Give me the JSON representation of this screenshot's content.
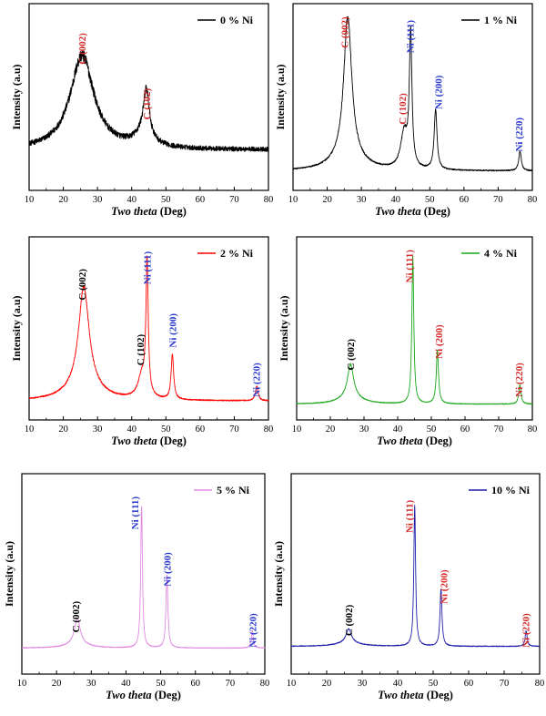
{
  "figure": {
    "xlabel_italic": "Two theta",
    "xlabel_unit": " (Deg)",
    "ylabel": "Intensity (a.u)"
  },
  "chart_data": [
    {
      "type": "line",
      "legend": "0 % Ni",
      "color": "#000000",
      "xlim": [
        10,
        80
      ],
      "xticks": [
        10,
        20,
        30,
        40,
        50,
        60,
        70,
        80
      ],
      "ylim": [
        0,
        100
      ],
      "noise": 0.09,
      "baseline": 18,
      "peaks": [
        {
          "center": 25.5,
          "height": 58,
          "width": 4.2
        },
        {
          "center": 44.3,
          "height": 28,
          "width": 1.0
        },
        {
          "center": 43.5,
          "height": 8,
          "width": 3.0
        }
      ],
      "annotations": [
        {
          "text": "C (002)",
          "x": 25.5,
          "color": "#d42a2a",
          "y": 90
        },
        {
          "text": "C (102)",
          "x": 44.3,
          "color": "#d42a2a",
          "y": 56
        }
      ]
    },
    {
      "type": "line",
      "legend": "1 % Ni",
      "color": "#000000",
      "xlim": [
        10,
        80
      ],
      "xticks": [
        10,
        20,
        30,
        40,
        50,
        60,
        70,
        80
      ],
      "ylim": [
        0,
        100
      ],
      "noise": 0.035,
      "baseline": 5,
      "peaks": [
        {
          "center": 26.0,
          "height": 87,
          "width": 1.4
        },
        {
          "center": 26.0,
          "height": 8,
          "width": 5.0
        },
        {
          "center": 42.5,
          "height": 22,
          "width": 1.2
        },
        {
          "center": 44.4,
          "height": 82,
          "width": 0.45
        },
        {
          "center": 51.7,
          "height": 37,
          "width": 0.5
        },
        {
          "center": 76.4,
          "height": 12,
          "width": 0.45
        }
      ],
      "annotations": [
        {
          "text": "C (002)",
          "x": 25.0,
          "color": "#d42a2a",
          "y": 100
        },
        {
          "text": "C (102)",
          "x": 42.0,
          "color": "#d42a2a",
          "y": 53
        },
        {
          "text": "Ni (111)",
          "x": 44.2,
          "color": "#2b3bcc",
          "y": 98
        },
        {
          "text": "Ni (200)",
          "x": 52.5,
          "color": "#2b3bcc",
          "y": 64
        },
        {
          "text": "Ni (220)",
          "x": 76.0,
          "color": "#2b3bcc",
          "y": 38
        }
      ]
    },
    {
      "type": "line",
      "legend": "2 % Ni",
      "color": "#ff0000",
      "xlim": [
        10,
        80
      ],
      "xticks": [
        10,
        20,
        30,
        40,
        50,
        60,
        70,
        80
      ],
      "ylim": [
        0,
        100
      ],
      "noise": 0.035,
      "baseline": 5,
      "peaks": [
        {
          "center": 26.0,
          "height": 62,
          "width": 1.8
        },
        {
          "center": 26.0,
          "height": 10,
          "width": 5.0
        },
        {
          "center": 43.0,
          "height": 14,
          "width": 1.4
        },
        {
          "center": 44.5,
          "height": 83,
          "width": 0.4
        },
        {
          "center": 51.9,
          "height": 28,
          "width": 0.45
        },
        {
          "center": 76.6,
          "height": 9,
          "width": 0.45
        }
      ],
      "annotations": [
        {
          "text": "C (002)",
          "x": 25.5,
          "color": "#000000",
          "y": 88
        },
        {
          "text": "C (102)",
          "x": 42.5,
          "color": "#000000",
          "y": 47
        },
        {
          "text": "Ni (111)",
          "x": 44.5,
          "color": "#2b3bcc",
          "y": 99
        },
        {
          "text": "Ni (200)",
          "x": 51.9,
          "color": "#2b3bcc",
          "y": 60
        },
        {
          "text": "Ni (220)",
          "x": 76.4,
          "color": "#2b3bcc",
          "y": 29
        }
      ]
    },
    {
      "type": "line",
      "legend": "4 % Ni",
      "color": "#1aa51a",
      "xlim": [
        10,
        80
      ],
      "xticks": [
        10,
        20,
        30,
        40,
        50,
        60,
        70,
        80
      ],
      "ylim": [
        0,
        100
      ],
      "noise": 0.025,
      "baseline": 3,
      "peaks": [
        {
          "center": 26.0,
          "height": 21,
          "width": 1.1
        },
        {
          "center": 26.0,
          "height": 4,
          "width": 4.0
        },
        {
          "center": 44.5,
          "height": 92,
          "width": 0.35
        },
        {
          "center": 51.8,
          "height": 33,
          "width": 0.4
        },
        {
          "center": 76.3,
          "height": 12,
          "width": 0.4
        }
      ],
      "annotations": [
        {
          "text": "C (002)",
          "x": 26.0,
          "color": "#000000",
          "y": 44
        },
        {
          "text": "Ni (111)",
          "x": 43.4,
          "color": "#d42a2a",
          "y": 100
        },
        {
          "text": "Ni (200)",
          "x": 52.2,
          "color": "#d42a2a",
          "y": 53
        },
        {
          "text": "Ni (220)",
          "x": 76.0,
          "color": "#d42a2a",
          "y": 29
        }
      ]
    },
    {
      "type": "line",
      "legend": "5 % Ni",
      "color": "#e08ae0",
      "xlim": [
        10,
        80
      ],
      "xticks": [
        10,
        20,
        30,
        40,
        50,
        60,
        70,
        80
      ],
      "ylim": [
        0,
        100
      ],
      "noise": 0.02,
      "baseline": 8,
      "peaks": [
        {
          "center": 26.0,
          "height": 15,
          "width": 1.0
        },
        {
          "center": 26.0,
          "height": 2,
          "width": 4.0
        },
        {
          "center": 44.5,
          "height": 82,
          "width": 0.3
        },
        {
          "center": 51.8,
          "height": 42,
          "width": 0.33
        },
        {
          "center": 76.4,
          "height": 10,
          "width": 0.33
        }
      ],
      "annotations": [
        {
          "text": "C (002)",
          "x": 25.5,
          "color": "#000000",
          "y": 35
        },
        {
          "text": "Ni (111)",
          "x": 42.5,
          "color": "#2b3bcc",
          "y": 95
        },
        {
          "text": "Ni (200)",
          "x": 51.8,
          "color": "#2b3bcc",
          "y": 63
        },
        {
          "text": "Ni (220)",
          "x": 76.4,
          "color": "#2b3bcc",
          "y": 28
        }
      ]
    },
    {
      "type": "line",
      "legend": "10 % Ni",
      "color": "#1f1fa8",
      "xlim": [
        10,
        80
      ],
      "xticks": [
        10,
        20,
        30,
        40,
        50,
        60,
        70,
        80
      ],
      "ylim": [
        0,
        100
      ],
      "noise": 0.02,
      "baseline": 9,
      "peaks": [
        {
          "center": 26.2,
          "height": 8,
          "width": 0.9
        },
        {
          "center": 26.2,
          "height": 2,
          "width": 4.0
        },
        {
          "center": 44.8,
          "height": 80,
          "width": 0.3
        },
        {
          "center": 52.2,
          "height": 33,
          "width": 0.33
        },
        {
          "center": 76.2,
          "height": 9,
          "width": 0.33
        }
      ],
      "annotations": [
        {
          "text": "C (002)",
          "x": 26.2,
          "color": "#000000",
          "y": 33
        },
        {
          "text": "Ni (111)",
          "x": 43.2,
          "color": "#d42a2a",
          "y": 93
        },
        {
          "text": "Ni (200)",
          "x": 53.0,
          "color": "#d42a2a",
          "y": 53
        },
        {
          "text": "Ni (220)",
          "x": 76.0,
          "color": "#d42a2a",
          "y": 28
        }
      ]
    }
  ]
}
